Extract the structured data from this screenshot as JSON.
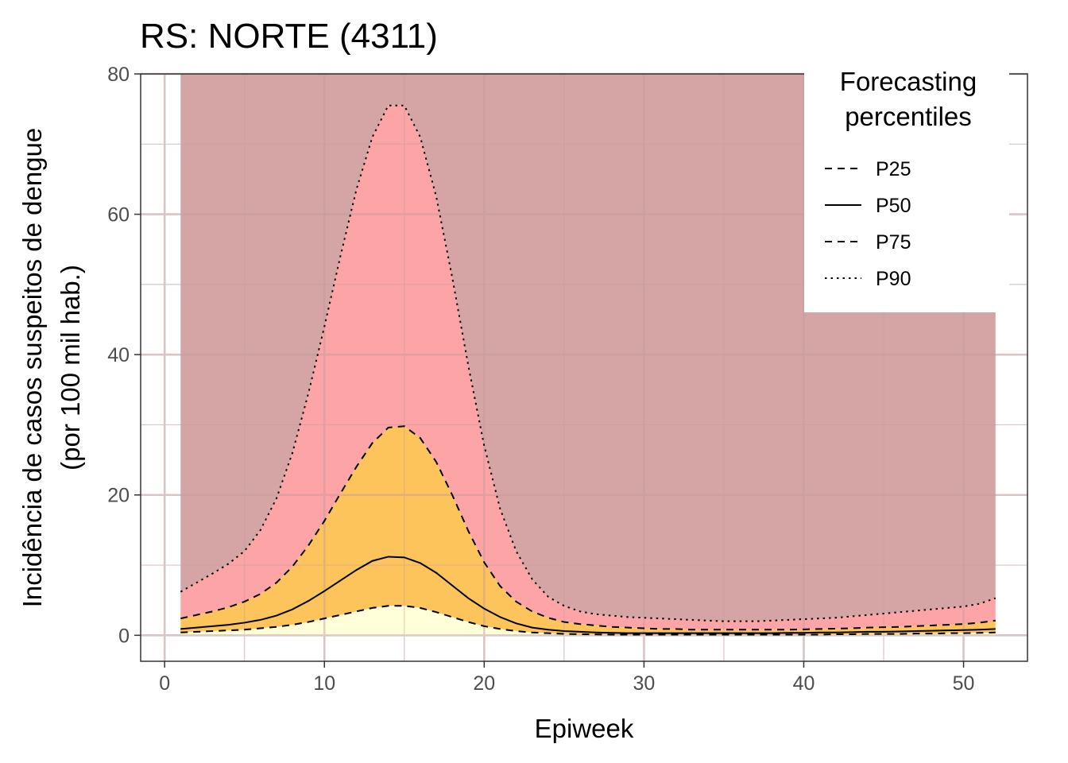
{
  "chart_data": {
    "type": "area",
    "title": "RS: NORTE (4311)",
    "xlabel": "Epiweek",
    "ylabel_line1": "Incidência de casos suspeitos de dengue",
    "ylabel_line2": "(por 100 mil hab.)",
    "xlim": [
      -1.5,
      54
    ],
    "ylim": [
      -3.7,
      80
    ],
    "x_ticks": [
      0,
      10,
      20,
      30,
      40,
      50
    ],
    "x_tick_labels": [
      "0",
      "10",
      "20",
      "30",
      "40",
      "50"
    ],
    "y_ticks": [
      0,
      20,
      40,
      60,
      80
    ],
    "y_tick_labels": [
      "0",
      "20",
      "40",
      "60",
      "80"
    ],
    "grid": true,
    "x": [
      1,
      2,
      3,
      4,
      5,
      6,
      7,
      8,
      9,
      10,
      11,
      12,
      13,
      14,
      15,
      16,
      17,
      18,
      19,
      20,
      21,
      22,
      23,
      24,
      25,
      26,
      27,
      28,
      29,
      30,
      31,
      32,
      33,
      34,
      35,
      36,
      37,
      38,
      39,
      40,
      41,
      42,
      43,
      44,
      45,
      46,
      47,
      48,
      49,
      50,
      51,
      52
    ],
    "series": [
      {
        "name": "P25",
        "linestyle": "dashed",
        "values": [
          0.4,
          0.5,
          0.6,
          0.7,
          0.8,
          1.0,
          1.2,
          1.5,
          1.9,
          2.4,
          2.9,
          3.4,
          3.9,
          4.2,
          4.2,
          3.9,
          3.3,
          2.6,
          1.9,
          1.3,
          0.9,
          0.6,
          0.4,
          0.3,
          0.2,
          0.15,
          0.12,
          0.1,
          0.1,
          0.1,
          0.1,
          0.1,
          0.1,
          0.1,
          0.1,
          0.1,
          0.1,
          0.1,
          0.1,
          0.1,
          0.1,
          0.15,
          0.15,
          0.2,
          0.2,
          0.2,
          0.25,
          0.25,
          0.3,
          0.3,
          0.35,
          0.4
        ]
      },
      {
        "name": "P50",
        "linestyle": "solid",
        "values": [
          0.9,
          1.1,
          1.3,
          1.5,
          1.8,
          2.2,
          2.8,
          3.7,
          4.9,
          6.3,
          7.8,
          9.3,
          10.6,
          11.2,
          11.1,
          10.3,
          8.9,
          7.1,
          5.3,
          3.8,
          2.6,
          1.7,
          1.1,
          0.8,
          0.6,
          0.5,
          0.4,
          0.35,
          0.3,
          0.3,
          0.3,
          0.3,
          0.3,
          0.3,
          0.3,
          0.3,
          0.3,
          0.3,
          0.35,
          0.35,
          0.4,
          0.4,
          0.45,
          0.5,
          0.5,
          0.55,
          0.6,
          0.65,
          0.7,
          0.75,
          0.8,
          0.9
        ]
      },
      {
        "name": "P75",
        "linestyle": "dashed",
        "values": [
          2.4,
          2.9,
          3.4,
          4.0,
          4.8,
          5.9,
          7.5,
          9.8,
          12.8,
          16.3,
          20.2,
          24.0,
          27.4,
          29.6,
          29.8,
          28.1,
          24.7,
          20.0,
          14.9,
          10.4,
          7.0,
          4.8,
          3.4,
          2.5,
          1.9,
          1.6,
          1.4,
          1.2,
          1.1,
          1.0,
          0.9,
          0.9,
          0.8,
          0.8,
          0.8,
          0.8,
          0.8,
          0.8,
          0.8,
          0.85,
          0.9,
          0.95,
          1.0,
          1.1,
          1.15,
          1.2,
          1.3,
          1.4,
          1.5,
          1.6,
          1.8,
          2.1
        ]
      },
      {
        "name": "P90",
        "linestyle": "dotted",
        "values": [
          6.2,
          7.5,
          8.8,
          10.2,
          12.0,
          15.0,
          19.5,
          26.0,
          34.5,
          44.0,
          54.0,
          63.5,
          71.0,
          75.5,
          75.5,
          71.0,
          62.5,
          51.0,
          38.5,
          27.0,
          18.0,
          12.0,
          8.0,
          5.5,
          4.2,
          3.4,
          3.0,
          2.8,
          2.6,
          2.5,
          2.4,
          2.3,
          2.2,
          2.1,
          2.0,
          2.0,
          2.0,
          2.1,
          2.2,
          2.3,
          2.4,
          2.5,
          2.7,
          2.9,
          3.1,
          3.3,
          3.5,
          3.7,
          3.9,
          4.1,
          4.5,
          5.3
        ]
      }
    ],
    "band_fills": {
      "below_p25": "#ffffd9",
      "p25_to_p75": "#fec45c",
      "p75_to_p90": "#fca4a6",
      "above_p90": "#d5a5a6"
    },
    "legend": {
      "title_line1": "Forecasting",
      "title_line2": "percentiles",
      "position": "top-right"
    }
  }
}
